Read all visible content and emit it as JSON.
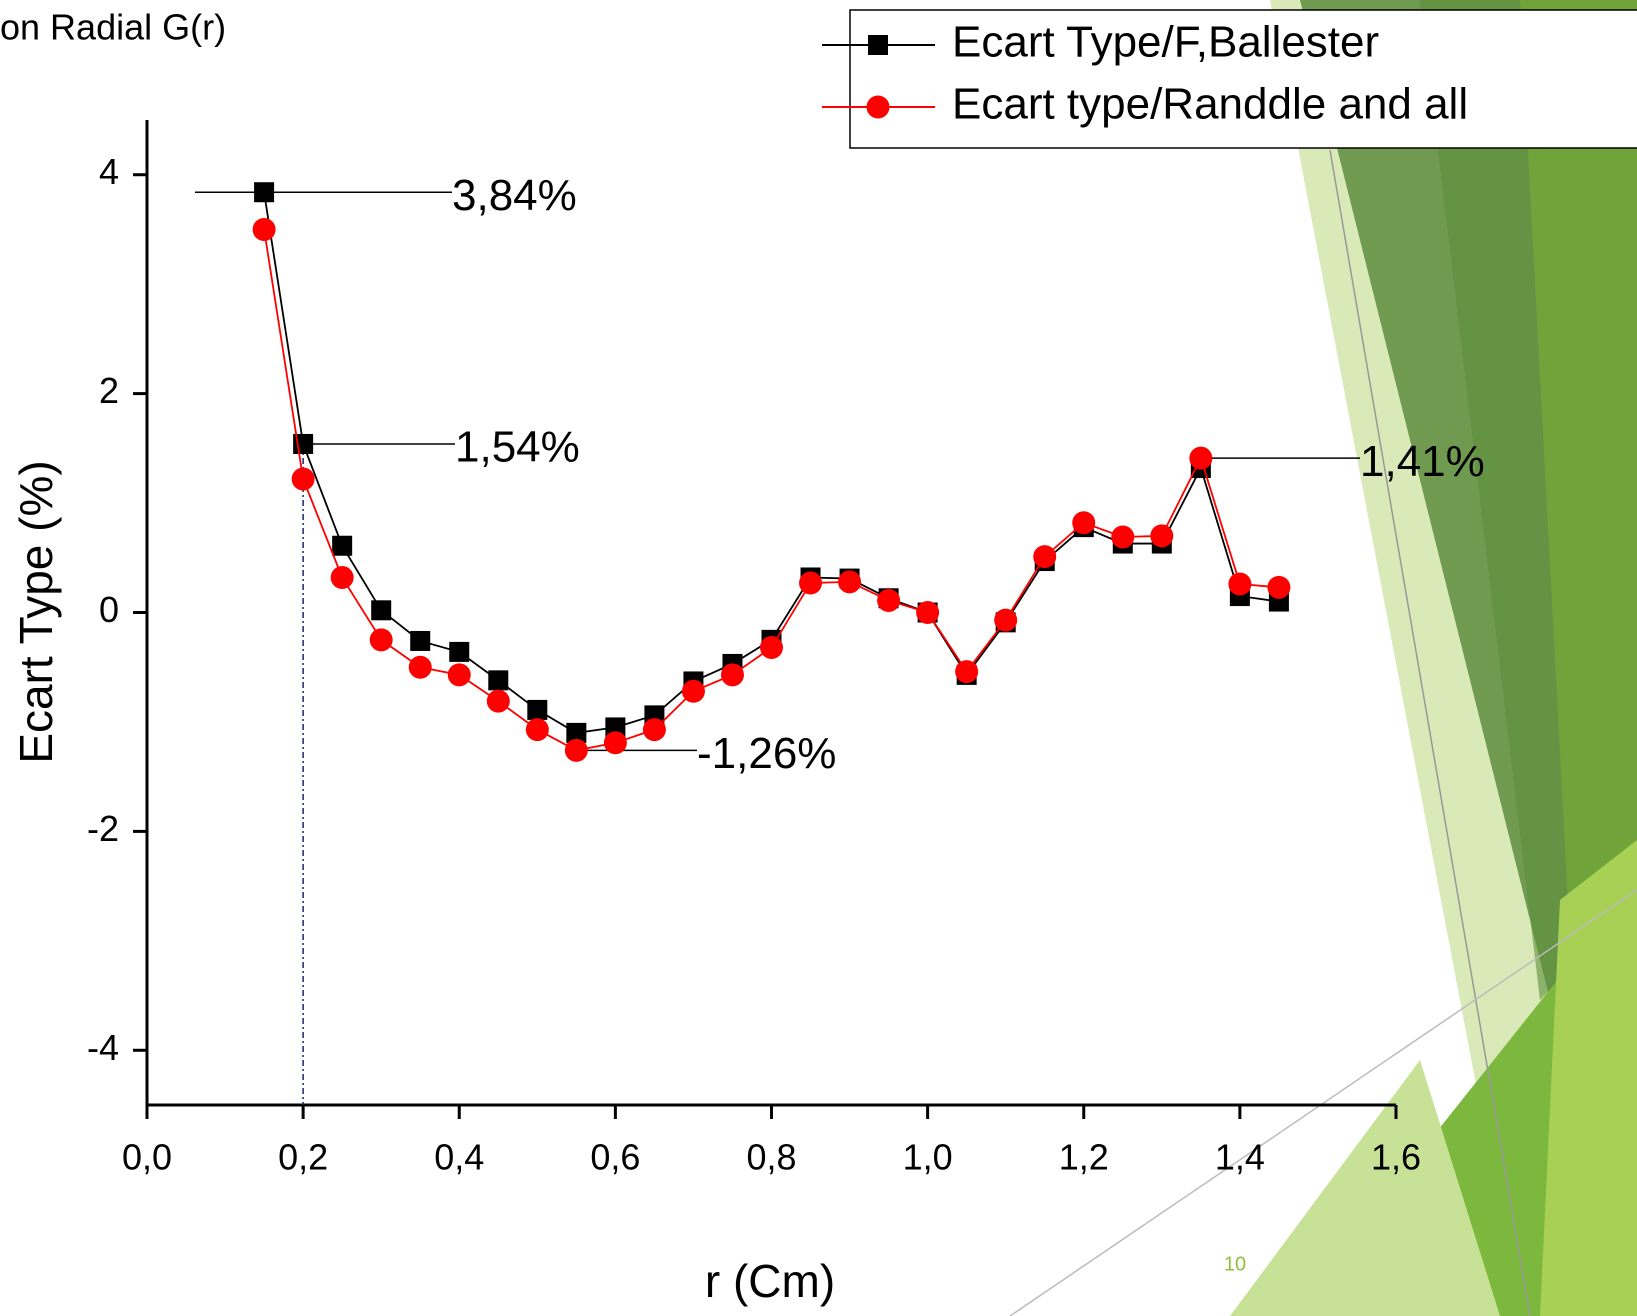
{
  "chart_data": {
    "type": "line",
    "title": "on Radial G(r)",
    "x_label": "r (Cm)",
    "y_label": "Ecart Type (%)",
    "page_number": "10",
    "x": [
      0.15,
      0.2,
      0.25,
      0.3,
      0.35,
      0.4,
      0.45,
      0.5,
      0.55,
      0.6,
      0.65,
      0.7,
      0.75,
      0.8,
      0.85,
      0.9,
      0.95,
      1.0,
      1.05,
      1.1,
      1.15,
      1.2,
      1.25,
      1.3,
      1.35,
      1.4,
      1.45
    ],
    "series": [
      {
        "name": "Ecart Type/F,Ballester",
        "color": "#000000",
        "marker": "square",
        "values": [
          3.84,
          1.54,
          0.61,
          0.02,
          -0.26,
          -0.36,
          -0.62,
          -0.89,
          -1.1,
          -1.05,
          -0.94,
          -0.63,
          -0.47,
          -0.25,
          0.32,
          0.31,
          0.13,
          0,
          -0.57,
          -0.09,
          0.47,
          0.78,
          0.63,
          0.63,
          1.32,
          0.15,
          0.1
        ]
      },
      {
        "name": "Ecart type/Randdle and all",
        "color": "#ff0000",
        "marker": "circle",
        "values": [
          3.5,
          1.22,
          0.32,
          -0.25,
          -0.5,
          -0.57,
          -0.81,
          -1.07,
          -1.26,
          -1.19,
          -1.07,
          -0.72,
          -0.57,
          -0.32,
          0.27,
          0.28,
          0.11,
          0,
          -0.54,
          -0.07,
          0.51,
          0.82,
          0.69,
          0.7,
          1.41,
          0.26,
          0.23
        ]
      }
    ],
    "annotations": [
      "3,84%",
      "1,54%",
      "-1,26%",
      "1,41%"
    ],
    "xlim": [
      0,
      1.6
    ],
    "xticks": [
      {
        "value": 0,
        "label": "0,0"
      },
      {
        "value": 0.2,
        "label": "0,2"
      },
      {
        "value": 0.4,
        "label": "0,4"
      },
      {
        "value": 0.6,
        "label": "0,6"
      },
      {
        "value": 0.8,
        "label": "0,8"
      },
      {
        "value": 1.0,
        "label": "1,0"
      },
      {
        "value": 1.2,
        "label": "1,2"
      },
      {
        "value": 1.4,
        "label": "1,4"
      },
      {
        "value": 1.6,
        "label": "1,6"
      }
    ],
    "ylim": [
      -4.5,
      4.5
    ],
    "yticks": [
      -4,
      -2,
      0,
      2,
      4
    ],
    "legend": "top-right"
  }
}
